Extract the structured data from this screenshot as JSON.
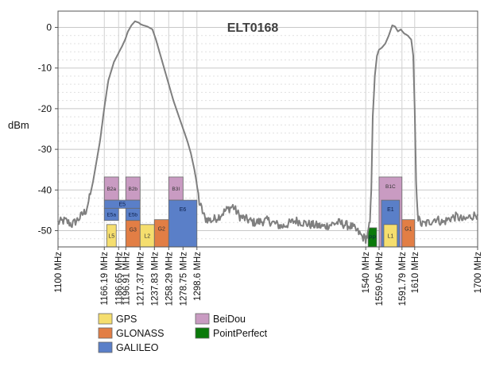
{
  "chart_data": {
    "type": "line",
    "title": "ELT0168",
    "ylabel": "dBm",
    "xlabel": "",
    "xlim": [
      1100,
      1700
    ],
    "ylim": [
      -54,
      4
    ],
    "y_ticks": [
      0,
      -10,
      -20,
      -30,
      -40,
      -50
    ],
    "y_tick_labels": [
      "0",
      "-10",
      "-20",
      "-30",
      "-40",
      "-50"
    ],
    "grid": true,
    "x_ticks": [
      {
        "f": 1100,
        "label": "1100 MHz"
      },
      {
        "f": 1166.19,
        "label": "1166.19 MHz"
      },
      {
        "f": 1186.65,
        "label": "1186.65 MHz"
      },
      {
        "f": 1196.91,
        "label": "1196.91 MHz"
      },
      {
        "f": 1217.37,
        "label": "1217.37 MHz"
      },
      {
        "f": 1237.83,
        "label": "1237.83 MHz"
      },
      {
        "f": 1258.29,
        "label": "1258.29 MHz"
      },
      {
        "f": 1278.75,
        "label": "1278.75 MHz"
      },
      {
        "f": 1298.6,
        "label": "1298.6 MHz"
      },
      {
        "f": 1540,
        "label": "1540 MHz"
      },
      {
        "f": 1559.05,
        "label": "1559.05 MHz"
      },
      {
        "f": 1591.79,
        "label": "1591.79 MHz"
      },
      {
        "f": 1610,
        "label": "1610 MHz"
      },
      {
        "f": 1700,
        "label": "1700 MHz"
      }
    ],
    "series": [
      {
        "name": "ELT0168 gain",
        "color": "#7f7f7f",
        "x": [
          1100,
          1110,
          1120,
          1130,
          1140,
          1145,
          1150,
          1155,
          1160,
          1166,
          1172,
          1180,
          1186,
          1192,
          1196,
          1200,
          1205,
          1210,
          1215,
          1218,
          1222,
          1228,
          1235,
          1240,
          1245,
          1250,
          1255,
          1260,
          1265,
          1270,
          1275,
          1280,
          1285,
          1290,
          1295,
          1298,
          1302,
          1310,
          1320,
          1330,
          1340,
          1350,
          1360,
          1380,
          1400,
          1420,
          1440,
          1460,
          1480,
          1500,
          1520,
          1530,
          1535,
          1540,
          1543,
          1546,
          1548,
          1550,
          1553,
          1556,
          1559,
          1563,
          1568,
          1573,
          1578,
          1582,
          1586,
          1590,
          1595,
          1600,
          1605,
          1608,
          1610,
          1612,
          1615,
          1620,
          1630,
          1640,
          1650,
          1660,
          1670,
          1680,
          1690,
          1700
        ],
        "values": [
          -48,
          -47.5,
          -48.5,
          -47,
          -45,
          -42,
          -38,
          -33,
          -28,
          -20,
          -13,
          -8.5,
          -6.5,
          -4.5,
          -3,
          -1,
          0.5,
          1.5,
          1.2,
          0.8,
          0.5,
          0.2,
          -0.5,
          -3,
          -6,
          -9,
          -12,
          -15,
          -18,
          -20.5,
          -23,
          -25.5,
          -28,
          -31,
          -35,
          -38,
          -43,
          -47,
          -47.5,
          -46.5,
          -45,
          -44,
          -46.5,
          -48,
          -47.5,
          -49,
          -47.5,
          -48.5,
          -49,
          -48,
          -49,
          -50.5,
          -51.5,
          -52,
          -51,
          -48,
          -40,
          -22,
          -12,
          -7,
          -5.5,
          -5,
          -4,
          -2,
          0.5,
          0.2,
          -1,
          -0.5,
          -1.5,
          -2,
          -3,
          -7,
          -20,
          -38,
          -47,
          -48.5,
          -48,
          -47,
          -48,
          -47,
          -46.5,
          -47.5,
          -46.5,
          -46
        ]
      }
    ],
    "bands": [
      {
        "label": "B2a",
        "system": "BeiDou",
        "f1": 1166.19,
        "f2": 1186.65,
        "top": -36.8,
        "bottom": -42.5
      },
      {
        "label": "B2b",
        "system": "BeiDou",
        "f1": 1196.91,
        "f2": 1217.37,
        "top": -36.8,
        "bottom": -42.5
      },
      {
        "label": "E5",
        "system": "GALILEO",
        "f1": 1166.19,
        "f2": 1217.37,
        "top": -42.5,
        "bottom": -44.5
      },
      {
        "label": "E5a",
        "system": "GALILEO",
        "f1": 1166.19,
        "f2": 1186.65,
        "top": -44.5,
        "bottom": -47.5
      },
      {
        "label": "E5b",
        "system": "GALILEO",
        "f1": 1196.91,
        "f2": 1217.37,
        "top": -44.5,
        "bottom": -47.5
      },
      {
        "label": "L5",
        "system": "GPS",
        "f1": 1166.19,
        "f2": 1186.65,
        "top": -48.5,
        "bottom": -54,
        "inset": 3
      },
      {
        "label": "G3",
        "system": "GLONASS",
        "f1": 1196.91,
        "f2": 1217.37,
        "top": -47.5,
        "bottom": -54
      },
      {
        "label": "L2",
        "system": "GPS",
        "f1": 1217.37,
        "f2": 1237.83,
        "top": -48.5,
        "bottom": -54
      },
      {
        "label": "G2",
        "system": "GLONASS",
        "f1": 1237.83,
        "f2": 1258.29,
        "top": -47.3,
        "bottom": -54
      },
      {
        "label": "B3I",
        "system": "BeiDou",
        "f1": 1258.29,
        "f2": 1278.75,
        "top": -36.8,
        "bottom": -42.5
      },
      {
        "label": "E6",
        "system": "GALILEO",
        "f1": 1258.29,
        "f2": 1298.6,
        "top": -42.5,
        "bottom": -54
      },
      {
        "label": "B1C",
        "system": "BeiDou",
        "f1": 1559.05,
        "f2": 1591.79,
        "top": -36.8,
        "bottom": -54
      },
      {
        "label": "E1",
        "system": "GALILEO",
        "f1": 1559.05,
        "f2": 1591.79,
        "top": -42.5,
        "bottom": -54,
        "inset": 3
      },
      {
        "label": "L1",
        "system": "GPS",
        "f1": 1559.05,
        "f2": 1591.79,
        "top": -48.5,
        "bottom": -54,
        "inset": 6
      },
      {
        "label": "G1",
        "system": "GLONASS",
        "f1": 1591.79,
        "f2": 1610,
        "top": -47.3,
        "bottom": -54
      },
      {
        "label": "PP",
        "system": "PointPerfect",
        "f1": 1540,
        "f2": 1559.05,
        "top": -49.3,
        "bottom": -54,
        "inset": 3
      }
    ],
    "legend": [
      {
        "name": "GPS",
        "color": "#f5de6e"
      },
      {
        "name": "BeiDou",
        "color": "#c99bc2"
      },
      {
        "name": "GLONASS",
        "color": "#e27e45"
      },
      {
        "name": "PointPerfect",
        "color": "#0a7a0a"
      },
      {
        "name": "GALILEO",
        "color": "#5a7fc8"
      }
    ],
    "system_colors": {
      "GPS": "#f5de6e",
      "BeiDou": "#c99bc2",
      "GLONASS": "#e27e45",
      "GALILEO": "#5a7fc8",
      "PointPerfect": "#0a7a0a"
    },
    "legend_placement": "bottom-left"
  }
}
